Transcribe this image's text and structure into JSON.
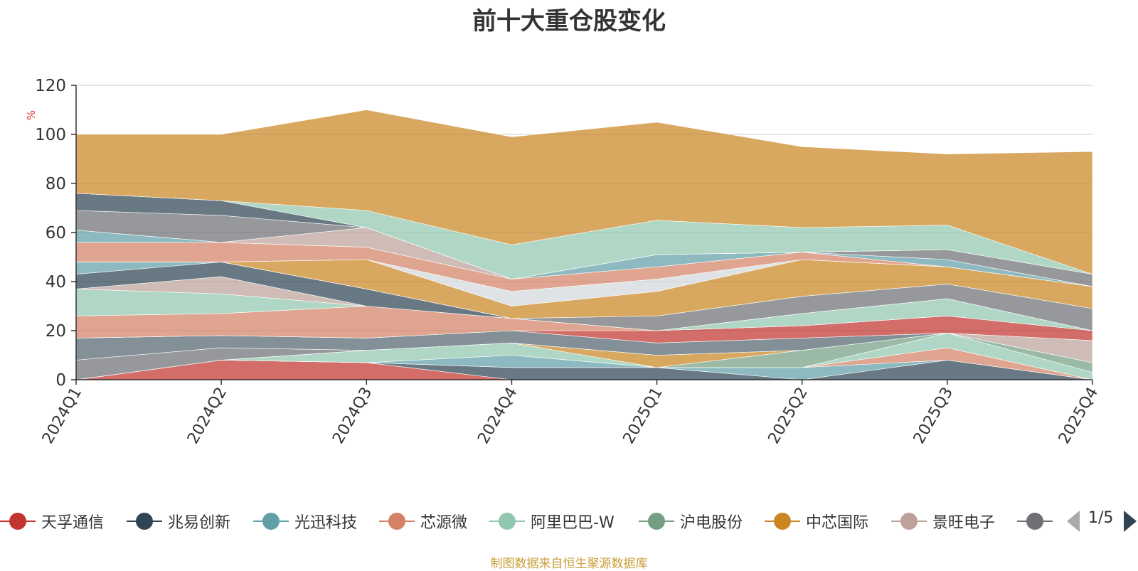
{
  "chart_data": {
    "type": "area",
    "stacked": true,
    "title": "前十大重仓股变化",
    "ylabel": "%",
    "ylim": [
      0,
      120
    ],
    "yticks": [
      0,
      20,
      40,
      60,
      80,
      100,
      120
    ],
    "grid": true,
    "categories": [
      "2024Q1",
      "2024Q2",
      "2024Q3",
      "2024Q4",
      "2025Q1",
      "2025Q2",
      "2025Q3",
      "2025Q4"
    ],
    "series": [
      {
        "name": "天孚通信",
        "color": "#c23531",
        "values": [
          0,
          8,
          7,
          0,
          0,
          0,
          0,
          0
        ]
      },
      {
        "name": "兆易创新",
        "color": "#2f4554",
        "values": [
          0,
          0,
          0,
          5,
          5,
          0,
          8,
          0
        ]
      },
      {
        "name": "光迅科技",
        "color": "#61a0a8",
        "values": [
          0,
          0,
          0,
          5,
          0,
          5,
          0,
          0
        ]
      },
      {
        "name": "芯源微",
        "color": "#d48265",
        "values": [
          0,
          0,
          0,
          0,
          0,
          0,
          5,
          0
        ]
      },
      {
        "name": "阿里巴巴-W",
        "color": "#91c7ae",
        "values": [
          0,
          0,
          5,
          5,
          0,
          0,
          6,
          3
        ]
      },
      {
        "name": "沪电股份",
        "color": "#749f83",
        "values": [
          0,
          0,
          0,
          0,
          0,
          7,
          0,
          4
        ]
      },
      {
        "name": "中芯国际",
        "color": "#ca8622",
        "values": [
          0,
          0,
          0,
          0,
          5,
          0,
          0,
          0
        ]
      },
      {
        "name": "景旺电子",
        "color": "#bda29a",
        "values": [
          0,
          0,
          0,
          0,
          0,
          0,
          0,
          9
        ]
      },
      {
        "name": "",
        "color": "#6e7074",
        "values": [
          8,
          5,
          0,
          0,
          0,
          0,
          0,
          0
        ]
      },
      {
        "name": "",
        "color": "#546570",
        "values": [
          9,
          5,
          5,
          5,
          5,
          5,
          0,
          0
        ]
      },
      {
        "name": "",
        "color": "#c23531",
        "values": [
          0,
          0,
          0,
          0,
          5,
          5,
          7,
          4
        ]
      },
      {
        "name": "",
        "color": "#d48265",
        "values": [
          9,
          9,
          13,
          5,
          0,
          0,
          0,
          0
        ]
      },
      {
        "name": "",
        "color": "#91c7ae",
        "values": [
          11,
          8,
          0,
          0,
          0,
          5,
          7,
          0
        ]
      },
      {
        "name": "",
        "color": "#bda29a",
        "values": [
          0,
          7,
          0,
          0,
          0,
          0,
          0,
          0
        ]
      },
      {
        "name": "",
        "color": "#2f4554",
        "values": [
          6,
          6,
          7,
          0,
          0,
          0,
          0,
          0
        ]
      },
      {
        "name": "",
        "color": "#61a0a8",
        "values": [
          5,
          0,
          0,
          0,
          0,
          0,
          0,
          0
        ]
      },
      {
        "name": "",
        "color": "#6e7074",
        "values": [
          0,
          0,
          0,
          0,
          6,
          7,
          6,
          9
        ]
      },
      {
        "name": "",
        "color": "#ca8622",
        "values": [
          0,
          0,
          12,
          5,
          10,
          15,
          7,
          9
        ]
      },
      {
        "name": "",
        "color": "#d3d8dc",
        "values": [
          0,
          0,
          0,
          6,
          5,
          0,
          0,
          0
        ]
      },
      {
        "name": "",
        "color": "#d48265",
        "values": [
          8,
          8,
          5,
          5,
          5,
          3,
          0,
          0
        ]
      },
      {
        "name": "",
        "color": "#61a0a8",
        "values": [
          5,
          0,
          0,
          0,
          5,
          0,
          3,
          0
        ]
      },
      {
        "name": "",
        "color": "#bda29a",
        "values": [
          0,
          0,
          8,
          0,
          0,
          0,
          0,
          0
        ]
      },
      {
        "name": "",
        "color": "#6e7074",
        "values": [
          8,
          11,
          0,
          0,
          0,
          0,
          4,
          5
        ]
      },
      {
        "name": "",
        "color": "#2f4554",
        "values": [
          7,
          6,
          0,
          0,
          0,
          0,
          0,
          0
        ]
      },
      {
        "name": "",
        "color": "#91c7ae",
        "values": [
          0,
          0,
          7,
          14,
          14,
          10,
          10,
          0
        ]
      },
      {
        "name": "",
        "color": "#ca8622",
        "values": [
          24,
          27,
          41,
          44,
          40,
          33,
          29,
          50
        ]
      }
    ]
  },
  "legend": {
    "items": [
      {
        "name": "天孚通信",
        "color": "#c23531"
      },
      {
        "name": "兆易创新",
        "color": "#2f4554"
      },
      {
        "name": "光迅科技",
        "color": "#61a0a8"
      },
      {
        "name": "芯源微",
        "color": "#d48265"
      },
      {
        "name": "阿里巴巴-W",
        "color": "#91c7ae"
      },
      {
        "name": "沪电股份",
        "color": "#749f83"
      },
      {
        "name": "中芯国际",
        "color": "#ca8622"
      },
      {
        "name": "景旺电子",
        "color": "#bda29a"
      },
      {
        "name": "",
        "color": "#6e7074"
      }
    ],
    "page": "1/5",
    "nav_inactive_color": "#aaaaaa",
    "nav_active_color": "#2f4554"
  },
  "source_note": "制图数据来自恒生聚源数据库"
}
